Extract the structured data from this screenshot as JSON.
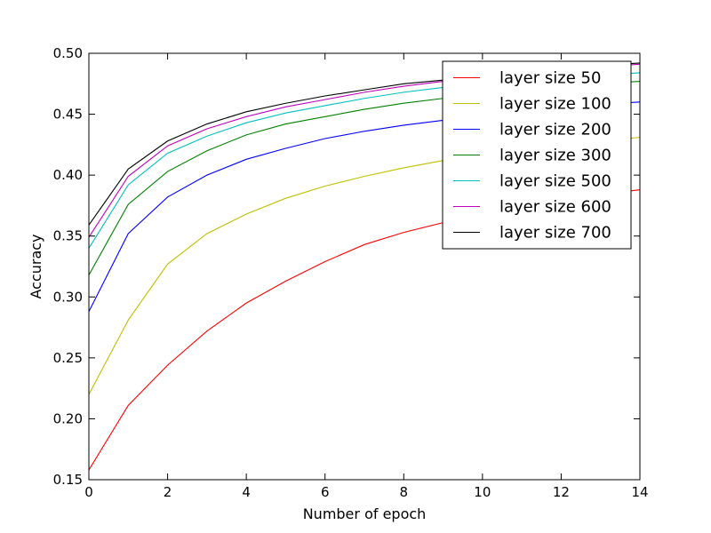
{
  "chart_data": {
    "type": "line",
    "title": "",
    "xlabel": "Number of epoch",
    "ylabel": "Accuracy",
    "xlim": [
      0,
      14
    ],
    "ylim": [
      0.15,
      0.5
    ],
    "xticks": [
      0,
      2,
      4,
      6,
      8,
      10,
      12,
      14
    ],
    "xtick_labels": [
      "0",
      "2",
      "4",
      "6",
      "8",
      "10",
      "12",
      "14"
    ],
    "yticks": [
      0.15,
      0.2,
      0.25,
      0.3,
      0.35,
      0.4,
      0.45,
      0.5
    ],
    "ytick_labels": [
      "0.15",
      "0.20",
      "0.25",
      "0.30",
      "0.35",
      "0.40",
      "0.45",
      "0.50"
    ],
    "grid": false,
    "legend_position": "top-right",
    "x": [
      0,
      1,
      2,
      3,
      4,
      5,
      6,
      7,
      8,
      9,
      10,
      11,
      12,
      13,
      14
    ],
    "series": [
      {
        "name": "layer size 50",
        "color": "#ff0000",
        "values": [
          0.158,
          0.211,
          0.244,
          0.272,
          0.295,
          0.313,
          0.329,
          0.343,
          0.353,
          0.361,
          0.367,
          0.373,
          0.379,
          0.384,
          0.388
        ]
      },
      {
        "name": "layer size 100",
        "color": "#bfbf00",
        "values": [
          0.22,
          0.281,
          0.327,
          0.352,
          0.368,
          0.381,
          0.391,
          0.399,
          0.406,
          0.412,
          0.417,
          0.421,
          0.425,
          0.428,
          0.431
        ]
      },
      {
        "name": "layer size 200",
        "color": "#0000ff",
        "values": [
          0.288,
          0.352,
          0.382,
          0.4,
          0.413,
          0.422,
          0.43,
          0.436,
          0.441,
          0.445,
          0.449,
          0.452,
          0.455,
          0.458,
          0.46
        ]
      },
      {
        "name": "layer size 300",
        "color": "#008000",
        "values": [
          0.318,
          0.376,
          0.403,
          0.42,
          0.433,
          0.442,
          0.448,
          0.454,
          0.459,
          0.463,
          0.467,
          0.47,
          0.472,
          0.475,
          0.477
        ]
      },
      {
        "name": "layer size 500",
        "color": "#00bfbf",
        "values": [
          0.34,
          0.392,
          0.418,
          0.432,
          0.443,
          0.451,
          0.457,
          0.463,
          0.468,
          0.472,
          0.475,
          0.478,
          0.48,
          0.482,
          0.484
        ]
      },
      {
        "name": "layer size 600",
        "color": "#bf00bf",
        "values": [
          0.349,
          0.399,
          0.424,
          0.438,
          0.448,
          0.456,
          0.462,
          0.468,
          0.473,
          0.477,
          0.48,
          0.483,
          0.486,
          0.489,
          0.491
        ]
      },
      {
        "name": "layer size 700",
        "color": "#000000",
        "values": [
          0.359,
          0.405,
          0.428,
          0.442,
          0.452,
          0.459,
          0.465,
          0.47,
          0.475,
          0.478,
          0.481,
          0.484,
          0.487,
          0.49,
          0.492
        ]
      }
    ]
  }
}
